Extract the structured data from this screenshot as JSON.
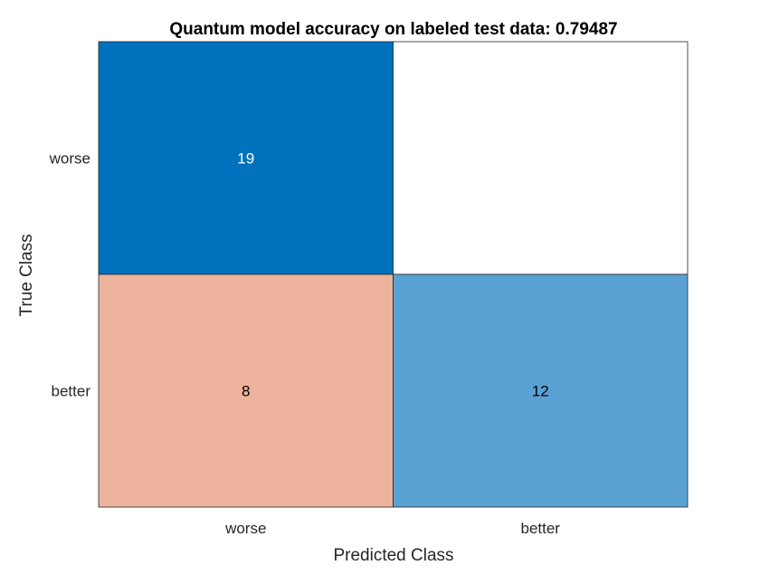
{
  "chart_data": {
    "type": "heatmap",
    "title": "Quantum model accuracy on labeled test data: 0.79487",
    "xlabel": "Predicted Class",
    "ylabel": "True Class",
    "x_categories": [
      "worse",
      "better"
    ],
    "y_categories": [
      "worse",
      "better"
    ],
    "matrix": [
      [
        19,
        0
      ],
      [
        8,
        12
      ]
    ],
    "show_zero_labels": false,
    "colors": {
      "diagonal_max": "#0072BD",
      "diagonal_min": "#5BA2D4",
      "off_diagonal": "#EDB39C",
      "empty": "#FFFFFF",
      "label_light": "#FFFFFF",
      "label_dark": "#000000"
    }
  }
}
